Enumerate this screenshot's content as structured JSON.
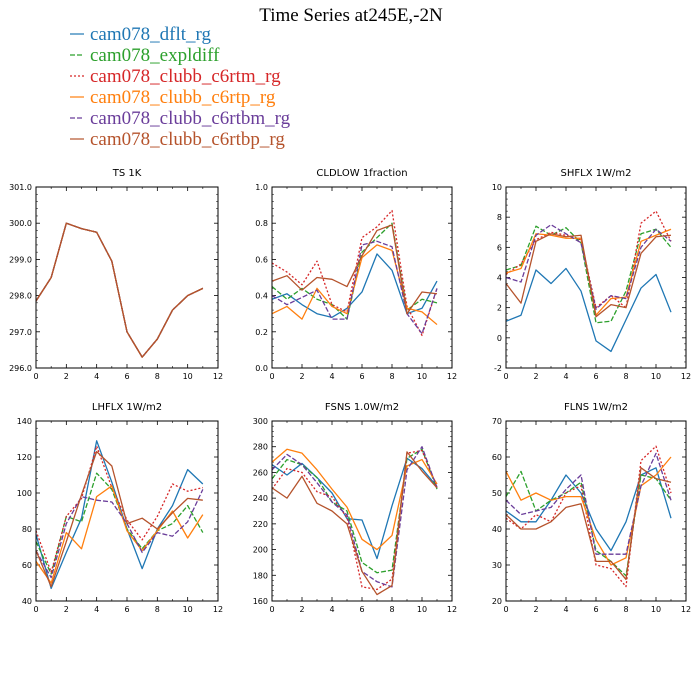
{
  "title": "Time Series at245E,-2N",
  "legend": [
    {
      "label": "cam078_dflt_rg",
      "color": "#1f77b4",
      "dash": ""
    },
    {
      "label": "cam078_expldiff",
      "color": "#2ca02c",
      "dash": "5,2"
    },
    {
      "label": "cam078_clubb_c6rtm_rg",
      "color": "#d62728",
      "dash": "2,2"
    },
    {
      "label": "cam078_clubb_c6rtp_rg",
      "color": "#ff7f0e",
      "dash": ""
    },
    {
      "label": "cam078_clubb_c6rtbm_rg",
      "color": "#6a3d9a",
      "dash": "5,2"
    },
    {
      "label": "cam078_clubb_c6rtbp_rg",
      "color": "#b5532c",
      "dash": ""
    }
  ],
  "chart_data": [
    {
      "type": "line",
      "title": "TS   1K",
      "xlim": [
        0,
        12
      ],
      "ylim": [
        296.0,
        301.0
      ],
      "xticks": [
        "0",
        "2",
        "4",
        "6",
        "8",
        "10",
        "12"
      ],
      "yticks": [
        "296.0",
        "297.0",
        "298.0",
        "299.0",
        "300.0",
        "301.0"
      ],
      "x": [
        0,
        1,
        2,
        3,
        4,
        5,
        6,
        7,
        8,
        9,
        10,
        11
      ],
      "series": [
        {
          "name": "cam078_dflt_rg",
          "values": [
            297.85,
            298.5,
            300.0,
            299.85,
            299.75,
            298.95,
            297.0,
            296.3,
            296.8,
            297.6,
            298.0,
            298.2
          ]
        },
        {
          "name": "cam078_expldiff",
          "values": [
            297.85,
            298.5,
            300.0,
            299.85,
            299.75,
            298.95,
            297.0,
            296.3,
            296.8,
            297.6,
            298.0,
            298.2
          ]
        },
        {
          "name": "cam078_clubb_c6rtm_rg",
          "values": [
            297.85,
            298.5,
            300.0,
            299.85,
            299.75,
            298.95,
            297.0,
            296.3,
            296.8,
            297.6,
            298.0,
            298.2
          ]
        },
        {
          "name": "cam078_clubb_c6rtp_rg",
          "values": [
            297.85,
            298.5,
            300.0,
            299.85,
            299.75,
            298.95,
            297.0,
            296.3,
            296.8,
            297.6,
            298.0,
            298.2
          ]
        },
        {
          "name": "cam078_clubb_c6rtbm_rg",
          "values": [
            297.85,
            298.5,
            300.0,
            299.85,
            299.75,
            298.95,
            297.0,
            296.3,
            296.8,
            297.6,
            298.0,
            298.2
          ]
        },
        {
          "name": "cam078_clubb_c6rtbp_rg",
          "values": [
            297.85,
            298.5,
            300.0,
            299.85,
            299.75,
            298.95,
            297.0,
            296.3,
            296.8,
            297.6,
            298.0,
            298.2
          ]
        }
      ]
    },
    {
      "type": "line",
      "title": "CLDLOW   1fraction",
      "xlim": [
        0,
        12
      ],
      "ylim": [
        0.0,
        1.0
      ],
      "xticks": [
        "0",
        "2",
        "4",
        "6",
        "8",
        "10",
        "12"
      ],
      "yticks": [
        "0.0",
        "0.2",
        "0.4",
        "0.6",
        "0.8",
        "1.0"
      ],
      "x": [
        0,
        1,
        2,
        3,
        4,
        5,
        6,
        7,
        8,
        9,
        10,
        11
      ],
      "series": [
        {
          "name": "cam078_dflt_rg",
          "values": [
            0.38,
            0.41,
            0.35,
            0.3,
            0.28,
            0.33,
            0.42,
            0.63,
            0.54,
            0.3,
            0.33,
            0.48
          ]
        },
        {
          "name": "cam078_expldiff",
          "values": [
            0.45,
            0.38,
            0.44,
            0.38,
            0.35,
            0.27,
            0.64,
            0.72,
            0.8,
            0.32,
            0.38,
            0.36
          ]
        },
        {
          "name": "cam078_clubb_c6rtm_rg",
          "values": [
            0.58,
            0.53,
            0.46,
            0.59,
            0.35,
            0.31,
            0.72,
            0.78,
            0.87,
            0.34,
            0.18,
            0.44
          ]
        },
        {
          "name": "cam078_clubb_c6rtp_rg",
          "values": [
            0.3,
            0.34,
            0.27,
            0.44,
            0.34,
            0.3,
            0.61,
            0.68,
            0.65,
            0.33,
            0.31,
            0.24
          ]
        },
        {
          "name": "cam078_clubb_c6rtbm_rg",
          "values": [
            0.4,
            0.35,
            0.39,
            0.43,
            0.27,
            0.27,
            0.68,
            0.7,
            0.67,
            0.3,
            0.19,
            0.44
          ]
        },
        {
          "name": "cam078_clubb_c6rtbp_rg",
          "values": [
            0.48,
            0.51,
            0.43,
            0.5,
            0.49,
            0.45,
            0.62,
            0.76,
            0.79,
            0.3,
            0.42,
            0.41
          ]
        }
      ]
    },
    {
      "type": "line",
      "title": "SHFLX   1W/m2",
      "xlim": [
        0,
        12
      ],
      "ylim": [
        -2,
        10
      ],
      "xticks": [
        "0",
        "2",
        "4",
        "6",
        "8",
        "10",
        "12"
      ],
      "yticks": [
        "-2",
        "0",
        "2",
        "4",
        "6",
        "8",
        "10"
      ],
      "x": [
        0,
        1,
        2,
        3,
        4,
        5,
        6,
        7,
        8,
        9,
        10,
        11
      ],
      "series": [
        {
          "name": "cam078_dflt_rg",
          "values": [
            1.1,
            1.5,
            4.5,
            3.6,
            4.6,
            3.1,
            -0.2,
            -0.9,
            1.2,
            3.3,
            4.2,
            1.7
          ]
        },
        {
          "name": "cam078_expldiff",
          "values": [
            4.5,
            4.8,
            7.4,
            6.8,
            7.3,
            6.3,
            1.0,
            1.1,
            3.1,
            6.9,
            7.2,
            6.0
          ]
        },
        {
          "name": "cam078_clubb_c6rtm_rg",
          "values": [
            4.2,
            4.9,
            6.5,
            7.0,
            6.8,
            6.5,
            2.0,
            2.8,
            2.0,
            7.6,
            8.4,
            6.4
          ]
        },
        {
          "name": "cam078_clubb_c6rtp_rg",
          "values": [
            4.3,
            4.6,
            6.9,
            6.8,
            6.6,
            6.6,
            1.5,
            2.6,
            2.7,
            6.4,
            6.8,
            7.2
          ]
        },
        {
          "name": "cam078_clubb_c6rtbm_rg",
          "values": [
            4.0,
            3.7,
            6.8,
            7.5,
            6.9,
            6.3,
            1.9,
            2.8,
            2.6,
            6.0,
            7.2,
            6.4
          ]
        },
        {
          "name": "cam078_clubb_c6rtbp_rg",
          "values": [
            3.6,
            2.3,
            6.4,
            6.9,
            6.7,
            6.8,
            1.4,
            2.2,
            2.0,
            5.6,
            6.7,
            6.8
          ]
        }
      ]
    },
    {
      "type": "line",
      "title": "LHFLX   1W/m2",
      "xlim": [
        0,
        12
      ],
      "ylim": [
        40,
        140
      ],
      "xticks": [
        "0",
        "2",
        "4",
        "6",
        "8",
        "10",
        "12"
      ],
      "yticks": [
        "40",
        "60",
        "80",
        "100",
        "120",
        "140"
      ],
      "x": [
        0,
        1,
        2,
        3,
        4,
        5,
        6,
        7,
        8,
        9,
        10,
        11
      ],
      "series": [
        {
          "name": "cam078_dflt_rg",
          "values": [
            77,
            47,
            67,
            86,
            129,
            106,
            80,
            58,
            80,
            93,
            113,
            105
          ]
        },
        {
          "name": "cam078_expldiff",
          "values": [
            73,
            55,
            87,
            84,
            111,
            102,
            80,
            69,
            79,
            83,
            93,
            78
          ]
        },
        {
          "name": "cam078_clubb_c6rtm_rg",
          "values": [
            79,
            56,
            87,
            97,
            126,
            103,
            85,
            74,
            87,
            105,
            101,
            103
          ]
        },
        {
          "name": "cam078_clubb_c6rtp_rg",
          "values": [
            62,
            50,
            78,
            69,
            98,
            104,
            79,
            68,
            79,
            90,
            75,
            88
          ]
        },
        {
          "name": "cam078_clubb_c6rtbm_rg",
          "values": [
            68,
            53,
            83,
            98,
            96,
            95,
            83,
            67,
            78,
            76,
            84,
            102
          ]
        },
        {
          "name": "cam078_clubb_c6rtbp_rg",
          "values": [
            68,
            48,
            73,
            99,
            123,
            115,
            83,
            86,
            80,
            89,
            97,
            96
          ]
        }
      ]
    },
    {
      "type": "line",
      "title": "FSNS   1.0W/m2",
      "xlim": [
        0,
        12
      ],
      "ylim": [
        160,
        300
      ],
      "xticks": [
        "0",
        "2",
        "4",
        "6",
        "8",
        "10",
        "12"
      ],
      "yticks": [
        "160",
        "180",
        "200",
        "220",
        "240",
        "260",
        "280",
        "300"
      ],
      "x": [
        0,
        1,
        2,
        3,
        4,
        5,
        6,
        7,
        8,
        9,
        10,
        11
      ],
      "series": [
        {
          "name": "cam078_dflt_rg",
          "values": [
            266,
            258,
            267,
            256,
            244,
            224,
            223,
            193,
            234,
            271,
            263,
            249
          ]
        },
        {
          "name": "cam078_expldiff",
          "values": [
            255,
            270,
            266,
            256,
            237,
            230,
            190,
            182,
            184,
            271,
            278,
            247
          ]
        },
        {
          "name": "cam078_clubb_c6rtm_rg",
          "values": [
            247,
            263,
            260,
            245,
            241,
            225,
            171,
            169,
            177,
            275,
            277,
            249
          ]
        },
        {
          "name": "cam078_clubb_c6rtp_rg",
          "values": [
            268,
            278,
            275,
            262,
            247,
            233,
            208,
            200,
            211,
            265,
            270,
            251
          ]
        },
        {
          "name": "cam078_clubb_c6rtbm_rg",
          "values": [
            262,
            274,
            266,
            252,
            237,
            227,
            183,
            175,
            171,
            262,
            280,
            248
          ]
        },
        {
          "name": "cam078_clubb_c6rtbp_rg",
          "values": [
            248,
            240,
            257,
            236,
            230,
            220,
            183,
            165,
            172,
            276,
            261,
            248
          ]
        }
      ]
    },
    {
      "type": "line",
      "title": "FLNS   1W/m2",
      "xlim": [
        0,
        12
      ],
      "ylim": [
        20,
        70
      ],
      "xticks": [
        "0",
        "2",
        "4",
        "6",
        "8",
        "10",
        "12"
      ],
      "yticks": [
        "20",
        "30",
        "40",
        "50",
        "60",
        "70"
      ],
      "x": [
        0,
        1,
        2,
        3,
        4,
        5,
        6,
        7,
        8,
        9,
        10,
        11
      ],
      "series": [
        {
          "name": "cam078_dflt_rg",
          "values": [
            45,
            42,
            42,
            48,
            55,
            50,
            40,
            34,
            42,
            55,
            57,
            43
          ]
        },
        {
          "name": "cam078_expldiff",
          "values": [
            49,
            56,
            45,
            48,
            50,
            53,
            34,
            31,
            27,
            55,
            54,
            48
          ]
        },
        {
          "name": "cam078_clubb_c6rtm_rg",
          "values": [
            43,
            40,
            44,
            42,
            50,
            52,
            30,
            29,
            24,
            59,
            63,
            50
          ]
        },
        {
          "name": "cam078_clubb_c6rtp_rg",
          "values": [
            56,
            48,
            50,
            48,
            49,
            49,
            37,
            30,
            32,
            52,
            55,
            60
          ]
        },
        {
          "name": "cam078_clubb_c6rtbm_rg",
          "values": [
            48,
            44,
            45,
            46,
            51,
            55,
            33,
            33,
            33,
            52,
            61,
            48
          ]
        },
        {
          "name": "cam078_clubb_c6rtbp_rg",
          "values": [
            44,
            40,
            40,
            42,
            46,
            47,
            31,
            31,
            26,
            57,
            54,
            53
          ]
        }
      ]
    }
  ]
}
